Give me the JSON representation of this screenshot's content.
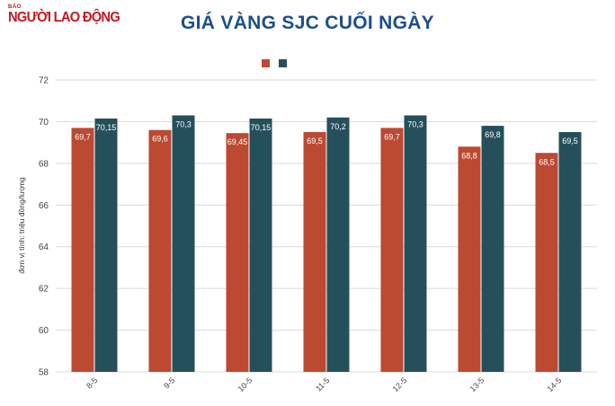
{
  "logo": {
    "top_text": "BÁO",
    "main_text": "NGƯỜI LAO ĐỘNG"
  },
  "colors": {
    "series_a": "#bc4932",
    "series_b": "#264f5c",
    "title": "#1b4f8c",
    "logo": "#c8171e",
    "grid": "#d9d9d9"
  },
  "chart_data": {
    "type": "bar",
    "title": "GIÁ VÀNG SJC CUỐI NGÀY",
    "xlabel": "",
    "ylabel": "đơn vị tính: triệu đồng/lượng",
    "categories": [
      "8-5",
      "9-5",
      "10-5",
      "11-5",
      "12-5",
      "13-5",
      "14-5"
    ],
    "series": [
      {
        "values": [
          69.7,
          69.6,
          69.45,
          69.5,
          69.7,
          68.8,
          68.5
        ],
        "labels": [
          "69,7",
          "69,6",
          "69,45",
          "69,5",
          "69,7",
          "68,8",
          "68,5"
        ]
      },
      {
        "values": [
          70.15,
          70.3,
          70.15,
          70.2,
          70.3,
          69.8,
          69.5
        ],
        "labels": [
          "70,15",
          "70,3",
          "70,15",
          "70,2",
          "70,3",
          "69,8",
          "69,5"
        ]
      }
    ],
    "ylim": [
      58,
      72
    ],
    "yticks": [
      58,
      60,
      62,
      64,
      66,
      68,
      70,
      72
    ],
    "grid": true,
    "legend": "top-center"
  }
}
